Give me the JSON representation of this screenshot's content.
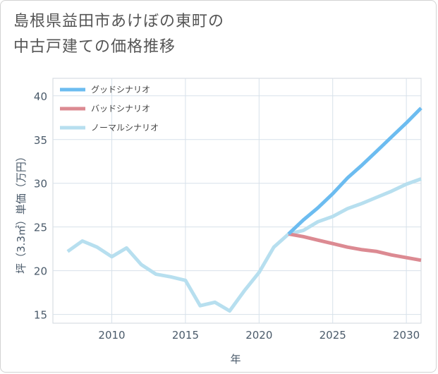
{
  "title_lines": [
    "島根県益田市あけぼの東町の",
    "中古戸建ての価格推移"
  ],
  "chart_data": {
    "type": "line",
    "xlabel": "年",
    "ylabel": "坪（3.3㎡）単価（万円）",
    "xlim": [
      2006,
      2031
    ],
    "ylim": [
      14,
      42
    ],
    "xticks": [
      2010,
      2015,
      2020,
      2025,
      2030
    ],
    "yticks": [
      15,
      20,
      25,
      30,
      35,
      40
    ],
    "grid": true,
    "legend_position": "top-left",
    "series": [
      {
        "name": "グッドシナリオ",
        "color": "#6cbcf0",
        "x": [
          2022,
          2023,
          2024,
          2025,
          2026,
          2027,
          2028,
          2029,
          2030,
          2031
        ],
        "y": [
          24.2,
          25.8,
          27.2,
          28.8,
          30.6,
          32.1,
          33.7,
          35.3,
          36.9,
          38.6
        ]
      },
      {
        "name": "バッドシナリオ",
        "color": "#dc8a92",
        "x": [
          2022,
          2023,
          2024,
          2025,
          2026,
          2027,
          2028,
          2029,
          2030,
          2031
        ],
        "y": [
          24.2,
          23.9,
          23.5,
          23.1,
          22.7,
          22.4,
          22.2,
          21.8,
          21.5,
          21.2
        ]
      },
      {
        "name": "ノーマルシナリオ",
        "color": "#b7dfef",
        "x": [
          2007,
          2008,
          2009,
          2010,
          2011,
          2012,
          2013,
          2014,
          2015,
          2016,
          2017,
          2018,
          2019,
          2020,
          2021,
          2022,
          2023,
          2024,
          2025,
          2026,
          2027,
          2028,
          2029,
          2030,
          2031
        ],
        "y": [
          22.2,
          23.4,
          22.7,
          21.6,
          22.6,
          20.7,
          19.6,
          19.3,
          18.9,
          16.0,
          16.4,
          15.4,
          17.7,
          19.8,
          22.7,
          24.2,
          24.6,
          25.6,
          26.2,
          27.1,
          27.7,
          28.4,
          29.1,
          29.9,
          30.5
        ]
      }
    ]
  }
}
